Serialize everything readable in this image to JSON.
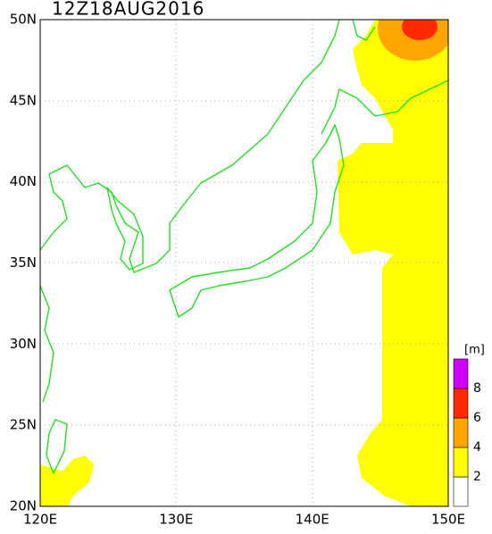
{
  "title": "12Z18AUG2016",
  "lat_labels": [
    "20N",
    "25N",
    "30N",
    "35N",
    "40N",
    "45N",
    "50N"
  ],
  "lon_labels": [
    "120E",
    "130E",
    "140E",
    "150E"
  ],
  "legend": {
    "unit": "[m]",
    "levels": [
      "2",
      "4",
      "6",
      "8"
    ],
    "colors": [
      "#ffffff",
      "#ffff00",
      "#ffa500",
      "#ff2a00",
      "#d000ff"
    ]
  }
}
